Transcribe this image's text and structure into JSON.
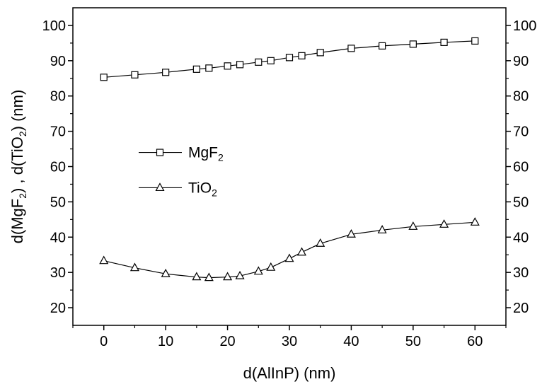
{
  "chart_data": {
    "type": "line",
    "title": "",
    "xlabel": "d(AlInP) (nm)",
    "ylabel": {
      "parts": [
        {
          "text": "d(MgF",
          "sub": false
        },
        {
          "text": "2",
          "sub": true
        },
        {
          "text": ") , d(TiO",
          "sub": false
        },
        {
          "text": "2",
          "sub": true
        },
        {
          "text": ") (nm)",
          "sub": false
        }
      ]
    },
    "xlim": [
      -5,
      65
    ],
    "ylim": [
      15,
      105
    ],
    "x_ticks": [
      0,
      10,
      20,
      30,
      40,
      50,
      60
    ],
    "y_ticks": [
      20,
      30,
      40,
      50,
      60,
      70,
      80,
      90,
      100
    ],
    "grid": false,
    "legend_position": "center-left",
    "series": [
      {
        "name": "MgF2",
        "name_parts": [
          {
            "text": "MgF",
            "sub": false
          },
          {
            "text": "2",
            "sub": true
          }
        ],
        "marker": "square",
        "x": [
          0,
          5,
          10,
          15,
          17,
          20,
          22,
          25,
          27,
          30,
          32,
          35,
          40,
          45,
          50,
          55,
          60
        ],
        "y": [
          85.3,
          86.0,
          86.7,
          87.6,
          87.9,
          88.5,
          88.9,
          89.6,
          90.0,
          90.9,
          91.4,
          92.3,
          93.5,
          94.2,
          94.7,
          95.2,
          95.6
        ]
      },
      {
        "name": "TiO2",
        "name_parts": [
          {
            "text": "TiO",
            "sub": false
          },
          {
            "text": "2",
            "sub": true
          }
        ],
        "marker": "triangle",
        "x": [
          0,
          5,
          10,
          15,
          17,
          20,
          22,
          25,
          27,
          30,
          32,
          35,
          40,
          45,
          50,
          55,
          60
        ],
        "y": [
          33.3,
          31.3,
          29.6,
          28.7,
          28.5,
          28.7,
          29.0,
          30.3,
          31.4,
          33.9,
          35.7,
          38.2,
          40.8,
          42.0,
          43.0,
          43.6,
          44.2
        ]
      }
    ]
  }
}
